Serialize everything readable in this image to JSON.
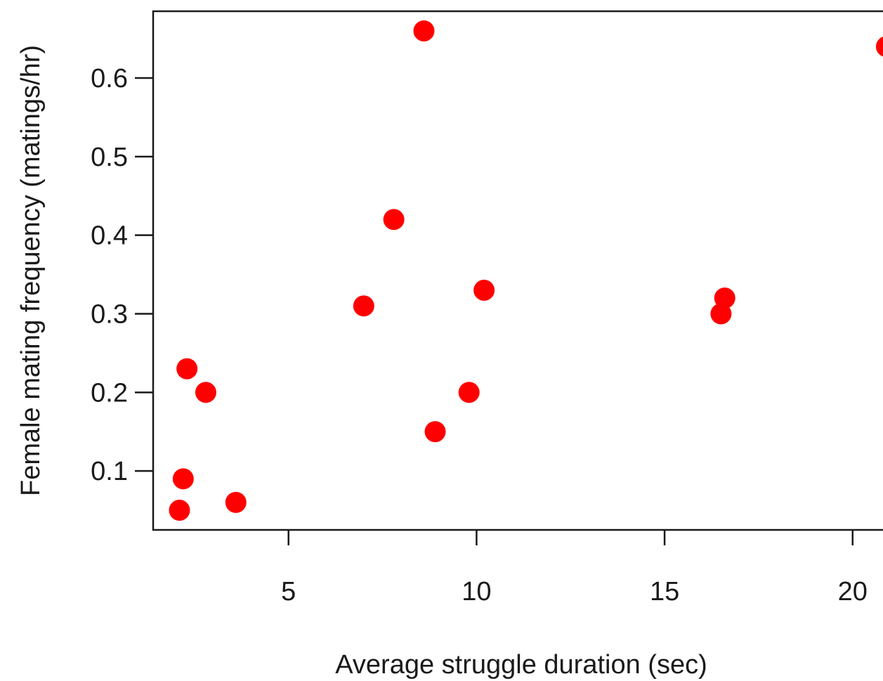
{
  "chart_data": {
    "type": "scatter",
    "title": "",
    "xlabel": "Average struggle duration (sec)",
    "ylabel": "Female mating frequency (matings/hr)",
    "xlim": [
      1.4,
      21.2
    ],
    "ylim": [
      0.025,
      0.685
    ],
    "x_ticks": [
      5,
      10,
      15,
      20
    ],
    "y_ticks": [
      0.1,
      0.2,
      0.3,
      0.4,
      0.5,
      0.6
    ],
    "x_tick_labels": [
      "5",
      "10",
      "15",
      "20"
    ],
    "y_tick_labels": [
      "0.1",
      "0.2",
      "0.3",
      "0.4",
      "0.5",
      "0.6"
    ],
    "grid": false,
    "point_color": "#ff0000",
    "points": [
      {
        "x": 2.1,
        "y": 0.05
      },
      {
        "x": 2.2,
        "y": 0.09
      },
      {
        "x": 2.3,
        "y": 0.23
      },
      {
        "x": 2.8,
        "y": 0.2
      },
      {
        "x": 3.6,
        "y": 0.06
      },
      {
        "x": 7.0,
        "y": 0.31
      },
      {
        "x": 7.8,
        "y": 0.42
      },
      {
        "x": 8.6,
        "y": 0.66
      },
      {
        "x": 8.9,
        "y": 0.15
      },
      {
        "x": 9.8,
        "y": 0.2
      },
      {
        "x": 10.2,
        "y": 0.33
      },
      {
        "x": 16.5,
        "y": 0.3
      },
      {
        "x": 16.6,
        "y": 0.32
      },
      {
        "x": 20.9,
        "y": 0.64
      }
    ]
  }
}
